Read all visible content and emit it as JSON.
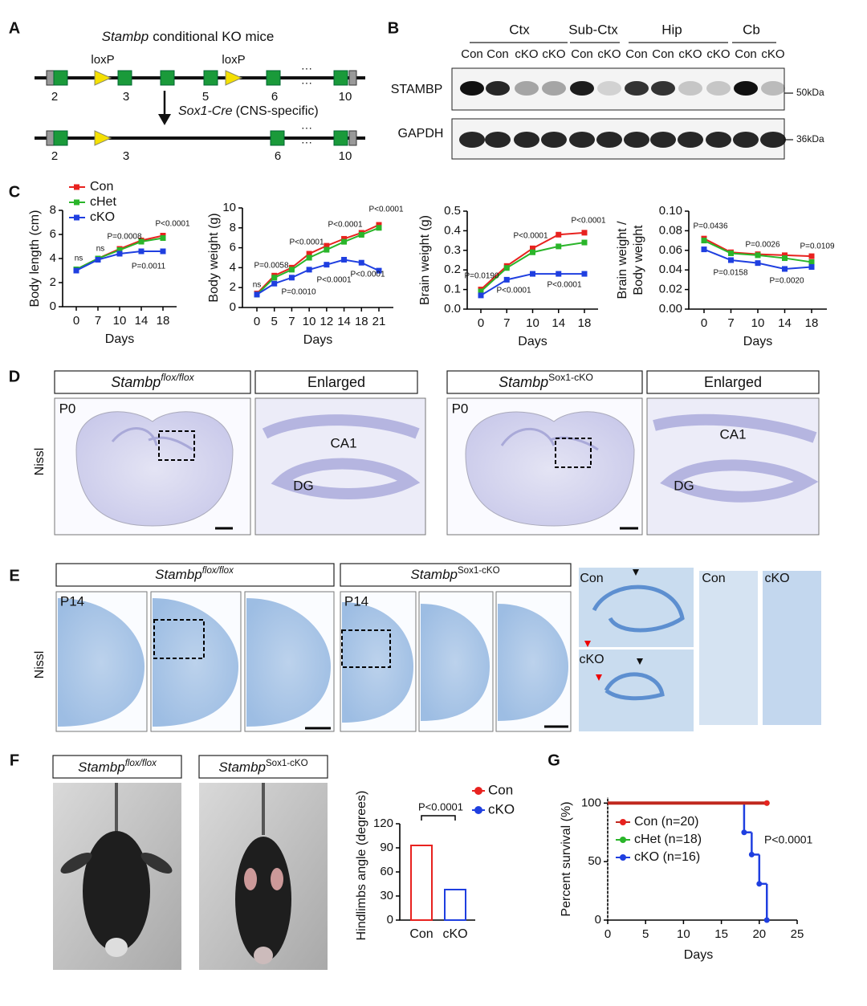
{
  "panel_labels": [
    "A",
    "B",
    "C",
    "D",
    "E",
    "F",
    "G"
  ],
  "panel_a": {
    "title_gene": "Stambp",
    "title_text": "conditional KO mice",
    "loxp": [
      "loxP",
      "loxP"
    ],
    "exons_wt": [
      "2",
      "3",
      "5",
      "6",
      "10"
    ],
    "exons_cko": [
      "2",
      "3",
      "6",
      "10"
    ],
    "ellipsis": "···",
    "cre_gene": "Sox1-Cre",
    "cre_text": "(CNS-specific)"
  },
  "panel_b": {
    "regions": [
      "Ctx",
      "Sub-Ctx",
      "Hip",
      "Cb"
    ],
    "lanes": [
      "Con",
      "Con",
      "cKO",
      "cKO",
      "Con",
      "cKO",
      "Con",
      "Con",
      "cKO",
      "cKO",
      "Con",
      "cKO"
    ],
    "proteins": [
      "STAMBP",
      "GAPDH"
    ],
    "sizes": [
      "50kDa",
      "36kDa"
    ]
  },
  "panel_d": {
    "gene": "Stambp",
    "genotypes": [
      "flox/flox",
      "Sox1-cKO"
    ],
    "enlarged": "Enlarged",
    "age": "P0",
    "stain": "Nissl",
    "regions": [
      "CA1",
      "DG"
    ]
  },
  "panel_e": {
    "gene": "Stambp",
    "genotypes": [
      "flox/flox",
      "Sox1-cKO"
    ],
    "age": "P14",
    "stain": "Nissl",
    "groups": [
      "Con",
      "cKO"
    ]
  },
  "panel_f": {
    "gene": "Stambp",
    "genotypes": [
      "flox/flox",
      "Sox1-cKO"
    ]
  },
  "chart_data": [
    {
      "type": "line",
      "ylabel": "Body length (cm)",
      "xlabel": "Days",
      "categories": [
        "0",
        "7",
        "10",
        "14",
        "18"
      ],
      "ylim": [
        0,
        8
      ],
      "yticks": [
        0,
        2,
        4,
        6,
        8
      ],
      "series": [
        {
          "name": "Con",
          "color": "#e8221f",
          "values": [
            3.1,
            4.0,
            4.8,
            5.5,
            5.9
          ]
        },
        {
          "name": "cHet",
          "color": "#2ab52a",
          "values": [
            3.1,
            4.0,
            4.7,
            5.4,
            5.7
          ]
        },
        {
          "name": "cKO",
          "color": "#1f3fe0",
          "values": [
            3.0,
            3.9,
            4.4,
            4.6,
            4.6
          ]
        }
      ],
      "annotations": [
        "ns",
        "ns",
        "P=0.0008",
        "P=0.0011",
        "P<0.0001"
      ]
    },
    {
      "type": "line",
      "ylabel": "Body weight (g)",
      "xlabel": "Days",
      "categories": [
        "0",
        "5",
        "7",
        "10",
        "12",
        "14",
        "18",
        "21"
      ],
      "ylim": [
        0,
        10
      ],
      "yticks": [
        0,
        2,
        4,
        6,
        8,
        10
      ],
      "series": [
        {
          "color": "#e8221f",
          "values": [
            1.4,
            3.2,
            4.0,
            5.4,
            6.2,
            6.9,
            7.5,
            8.3
          ]
        },
        {
          "color": "#2ab52a",
          "values": [
            1.3,
            3.0,
            3.8,
            5.0,
            5.8,
            6.6,
            7.3,
            8.0
          ]
        },
        {
          "color": "#1f3fe0",
          "values": [
            1.3,
            2.4,
            3.0,
            3.8,
            4.3,
            4.8,
            4.5,
            3.7
          ]
        }
      ],
      "annotations": [
        "ns",
        "P=0.0058",
        "P=0.0010",
        "P<0.0001",
        "P<0.0001",
        "P<0.0001",
        "P<0.0001",
        "P<0.0001"
      ]
    },
    {
      "type": "line",
      "ylabel": "Brain weight (g)",
      "xlabel": "Days",
      "categories": [
        "0",
        "7",
        "10",
        "14",
        "18"
      ],
      "ylim": [
        0,
        0.5
      ],
      "yticks": [
        {
          "value": 0,
          "label": "0.0"
        },
        0.1,
        0.2,
        0.3,
        0.4,
        0.5
      ],
      "series": [
        {
          "color": "#e8221f",
          "values": [
            0.1,
            0.22,
            0.31,
            0.38,
            0.39
          ]
        },
        {
          "color": "#2ab52a",
          "values": [
            0.09,
            0.21,
            0.29,
            0.32,
            0.34
          ]
        },
        {
          "color": "#1f3fe0",
          "values": [
            0.07,
            0.15,
            0.18,
            0.18,
            0.18
          ]
        }
      ],
      "annotations": [
        "P=0.0190",
        "P<0.0001",
        "P<0.0001",
        "P<0.0001",
        "P<0.0001"
      ]
    },
    {
      "type": "line",
      "ylabel": [
        "Brain weight /",
        "Body weight"
      ],
      "xlabel": "Days",
      "categories": [
        "0",
        "7",
        "10",
        "14",
        "18"
      ],
      "ylim": [
        0,
        0.1
      ],
      "yticks": [
        {
          "value": 0,
          "label": "0.00"
        },
        {
          "value": 0.02,
          "label": "0.02"
        },
        {
          "value": 0.04,
          "label": "0.04"
        },
        {
          "value": 0.06,
          "label": "0.06"
        },
        {
          "value": 0.08,
          "label": "0.08"
        },
        {
          "value": 0.1,
          "label": "0.10"
        }
      ],
      "series": [
        {
          "color": "#e8221f",
          "values": [
            0.072,
            0.058,
            0.056,
            0.055,
            0.054
          ]
        },
        {
          "color": "#2ab52a",
          "values": [
            0.07,
            0.057,
            0.055,
            0.052,
            0.048
          ]
        },
        {
          "color": "#1f3fe0",
          "values": [
            0.061,
            0.05,
            0.047,
            0.041,
            0.043
          ]
        }
      ],
      "annotations": [
        "P=0.0436",
        "P=0.0158",
        "P=0.0026",
        "P=0.0020",
        "P=0.0109"
      ]
    },
    {
      "type": "bar",
      "ylabel": "Hindlimbs angle (degrees)",
      "categories": [
        "Con",
        "cKO"
      ],
      "values": [
        93,
        38
      ],
      "colors": [
        "#e8221f",
        "#1f3fe0"
      ],
      "ylim": [
        0,
        120
      ],
      "yticks": [
        0,
        30,
        60,
        90,
        120
      ],
      "annotations": [
        "P<0.0001"
      ]
    },
    {
      "type": "step",
      "ylabel": "Percent survival (%)",
      "xlabel": "Days",
      "xlim": [
        0,
        25
      ],
      "xticks": [
        0,
        5,
        10,
        15,
        20,
        25
      ],
      "ylim": [
        0,
        105
      ],
      "yticks": [
        0,
        50,
        100
      ],
      "series": [
        {
          "name": "Con (n=20)",
          "color": "#c0281e",
          "x": [
            0,
            21
          ],
          "values": [
            100,
            100
          ]
        },
        {
          "name": "cHet (n=18)",
          "color": "#2ab52a",
          "x": [
            0,
            21
          ],
          "values": [
            100,
            100
          ]
        },
        {
          "name": "cKO (n=16)",
          "color": "#1f3fe0",
          "x": [
            0,
            18,
            19,
            20,
            21
          ],
          "values": [
            100,
            75,
            56,
            31,
            0
          ]
        }
      ],
      "annotations": [
        "P<0.0001"
      ]
    }
  ]
}
